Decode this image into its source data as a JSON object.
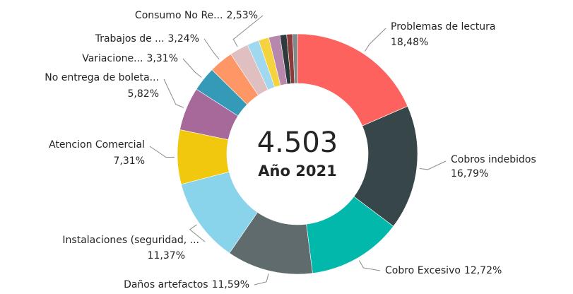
{
  "chart_data": {
    "type": "donut",
    "center_text": "4.503",
    "center_subtext": "Año 2021",
    "categories": [
      "Problemas de lectura",
      "Cobros indebidos",
      "Cobro Excesivo",
      "Daños artefactos",
      "Instalaciones (seguridad, ...",
      "Atencion Comercial",
      "No entrega de boleta...",
      "Variacione...",
      "Trabajos de ...",
      "Consumo No Re...",
      null,
      null,
      null,
      null,
      null,
      null
    ],
    "values": [
      18.48,
      16.79,
      12.72,
      11.59,
      11.37,
      7.31,
      5.82,
      3.31,
      3.24,
      2.53,
      1.6,
      1.4,
      1.5,
      0.9,
      0.8,
      0.64
    ],
    "value_labels": [
      "18,48%",
      "16,79%",
      "12,72%",
      "11,59%",
      "11,37%",
      "7,31%",
      "5,82%",
      "3,31%",
      "3,24%",
      "2,53%",
      null,
      null,
      null,
      null,
      null,
      null
    ],
    "colors": [
      "#fd625e",
      "#374649",
      "#01b8aa",
      "#5f6b6d",
      "#8ad4eb",
      "#f2c80f",
      "#a66999",
      "#3599b8",
      "#fe9666",
      "#dfbfbf",
      "#a0d8ef",
      "#f5d33f",
      "#b887ad",
      "#2f3a3c",
      "#8c3b3b",
      "#7f898a"
    ]
  }
}
